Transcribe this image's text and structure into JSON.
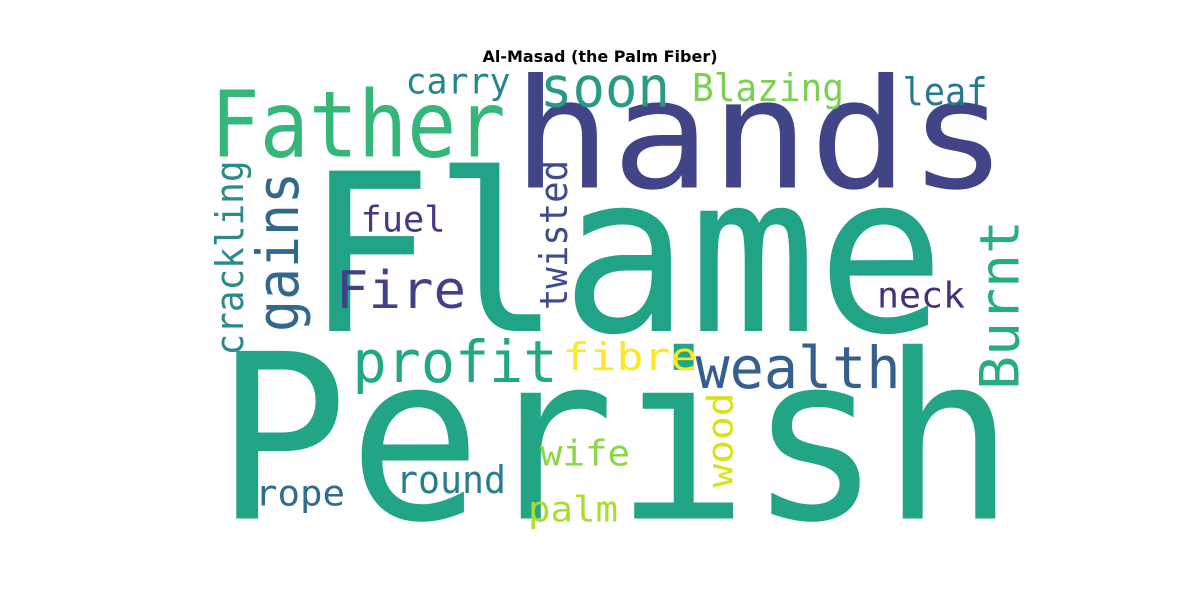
{
  "title": "Al-Masad (the Palm Fiber)",
  "words": [
    {
      "text": "Perish",
      "color": "#21a585"
    },
    {
      "text": "Flame",
      "color": "#20a386"
    },
    {
      "text": "hands",
      "color": "#414487"
    },
    {
      "text": "Father",
      "color": "#35b779"
    },
    {
      "text": "soon",
      "color": "#2a9a86"
    },
    {
      "text": "carry",
      "color": "#25848e"
    },
    {
      "text": "Blazing",
      "color": "#7ad151"
    },
    {
      "text": "leaf",
      "color": "#29788e"
    },
    {
      "text": "gains",
      "color": "#31688e"
    },
    {
      "text": "crackling",
      "color": "#2c8a8b"
    },
    {
      "text": "fuel",
      "color": "#443983"
    },
    {
      "text": "twisted",
      "color": "#3e4c8a"
    },
    {
      "text": "Fire",
      "color": "#424086"
    },
    {
      "text": "Burnt",
      "color": "#27ad81"
    },
    {
      "text": "neck",
      "color": "#472f7d"
    },
    {
      "text": "profit",
      "color": "#22a884"
    },
    {
      "text": "fibre",
      "color": "#fde725"
    },
    {
      "text": "wealth",
      "color": "#355f8d"
    },
    {
      "text": "wife",
      "color": "#8bd646"
    },
    {
      "text": "wood",
      "color": "#d8e219"
    },
    {
      "text": "round",
      "color": "#277f8e"
    },
    {
      "text": "rope",
      "color": "#2f6c8e"
    },
    {
      "text": "palm",
      "color": "#addc30"
    }
  ]
}
